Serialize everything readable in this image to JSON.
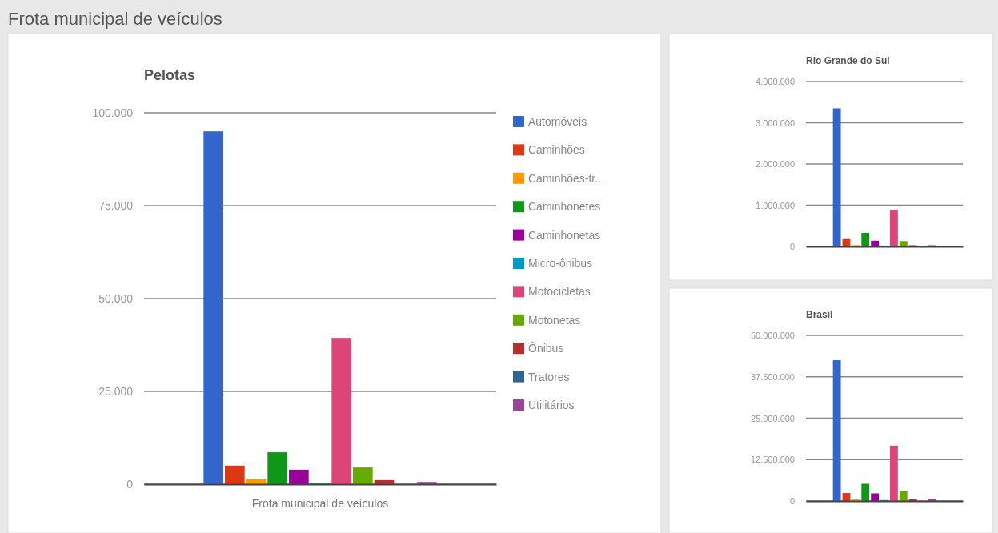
{
  "chart_data": [
    {
      "type": "bar",
      "title": "Pelotas",
      "annotations": [
        "Frota municipal de veículos"
      ],
      "xlabel": "Frota municipal de veículos",
      "categories": [
        null
      ],
      "ylim": [
        0,
        100000
      ],
      "yticks": [
        {
          "value": 0,
          "label": "0"
        },
        {
          "value": 25000,
          "label": "25.000"
        },
        {
          "value": 50000,
          "label": "50.000"
        },
        {
          "value": 75000,
          "label": "75.000"
        },
        {
          "value": 100000,
          "label": "100.000"
        }
      ],
      "grid": "y",
      "legend": "right",
      "series": [
        {
          "name": "Automóveis",
          "color": "#3366cc",
          "values": [
            95000
          ]
        },
        {
          "name": "Caminhões",
          "color": "#dc3912",
          "values": [
            5000
          ]
        },
        {
          "name": "Caminhões-tr...",
          "color": "#ff9900",
          "values": [
            1500
          ]
        },
        {
          "name": "Caminhonetes",
          "color": "#109618",
          "values": [
            8600
          ]
        },
        {
          "name": "Caminhonetas",
          "color": "#990099",
          "values": [
            3900
          ]
        },
        {
          "name": "Micro-ônibus",
          "color": "#0099c6",
          "values": [
            200
          ]
        },
        {
          "name": "Motocicletas",
          "color": "#dd4477",
          "values": [
            39400
          ]
        },
        {
          "name": "Motonetas",
          "color": "#66aa00",
          "values": [
            4500
          ]
        },
        {
          "name": "Ônibus",
          "color": "#b82e2e",
          "values": [
            1100
          ]
        },
        {
          "name": "Tratores",
          "color": "#316395",
          "values": [
            null
          ]
        },
        {
          "name": "Utilitários",
          "color": "#994499",
          "values": [
            600
          ]
        }
      ]
    },
    {
      "type": "bar",
      "title": "Rio Grande do Sul",
      "categories": [
        null
      ],
      "ylim": [
        0,
        4000000
      ],
      "yticks": [
        {
          "value": 0,
          "label": "0"
        },
        {
          "value": 1000000,
          "label": "1.000.000"
        },
        {
          "value": 2000000,
          "label": "2.000.000"
        },
        {
          "value": 3000000,
          "label": "3.000.000"
        },
        {
          "value": 4000000,
          "label": "4.000.000"
        }
      ],
      "grid": "y",
      "series": [
        {
          "color": "#3366cc",
          "values": [
            3350000
          ]
        },
        {
          "color": "#dc3912",
          "values": [
            180000
          ]
        },
        {
          "color": "#ff9900",
          "values": [
            30000
          ]
        },
        {
          "color": "#109618",
          "values": [
            330000
          ]
        },
        {
          "color": "#990099",
          "values": [
            140000
          ]
        },
        {
          "color": "#0099c6",
          "values": [
            20000
          ]
        },
        {
          "color": "#dd4477",
          "values": [
            890000
          ]
        },
        {
          "color": "#66aa00",
          "values": [
            130000
          ]
        },
        {
          "color": "#b82e2e",
          "values": [
            30000
          ]
        },
        {
          "color": "#316395",
          "values": [
            10000
          ]
        },
        {
          "color": "#994499",
          "values": [
            30000
          ]
        }
      ]
    },
    {
      "type": "bar",
      "title": "Brasil",
      "categories": [
        null
      ],
      "ylim": [
        0,
        50000000
      ],
      "yticks": [
        {
          "value": 0,
          "label": "0"
        },
        {
          "value": 12500000,
          "label": "12.500.000"
        },
        {
          "value": 25000000,
          "label": "25.000.000"
        },
        {
          "value": 37500000,
          "label": "37.500.000"
        },
        {
          "value": 50000000,
          "label": "50.000.000"
        }
      ],
      "grid": "y",
      "series": [
        {
          "color": "#3366cc",
          "values": [
            42500000
          ]
        },
        {
          "color": "#dc3912",
          "values": [
            2400000
          ]
        },
        {
          "color": "#ff9900",
          "values": [
            500000
          ]
        },
        {
          "color": "#109618",
          "values": [
            5200000
          ]
        },
        {
          "color": "#990099",
          "values": [
            2300000
          ]
        },
        {
          "color": "#0099c6",
          "values": [
            300000
          ]
        },
        {
          "color": "#dd4477",
          "values": [
            16700000
          ]
        },
        {
          "color": "#66aa00",
          "values": [
            3000000
          ]
        },
        {
          "color": "#b82e2e",
          "values": [
            500000
          ]
        },
        {
          "values": [
            null
          ]
        },
        {
          "color": "#994499",
          "values": [
            700000
          ]
        }
      ]
    }
  ]
}
